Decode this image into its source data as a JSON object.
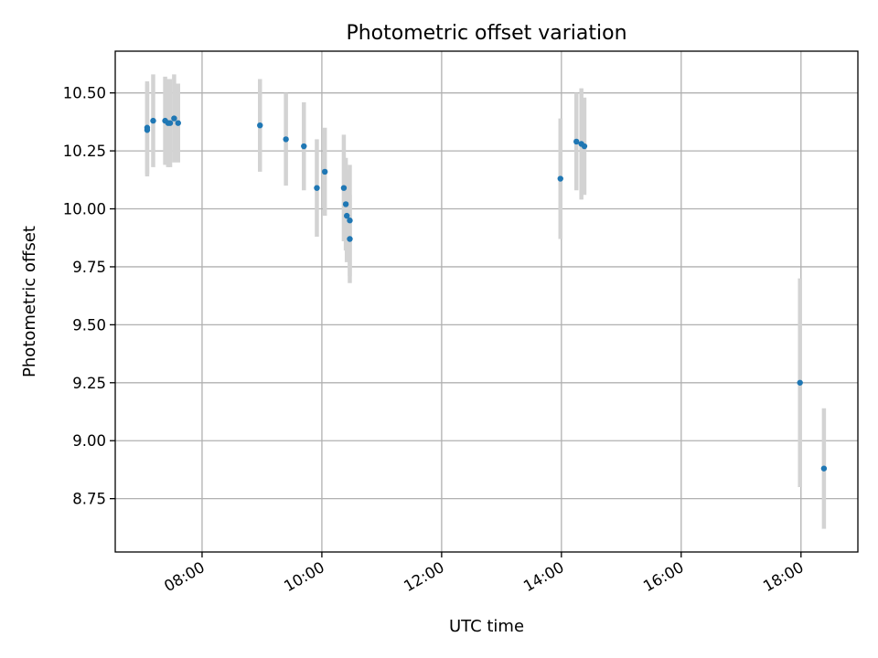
{
  "chart_data": {
    "type": "scatter",
    "title": "Photometric offset variation",
    "xlabel": "UTC time",
    "ylabel": "Photometric offset",
    "xlim": [
      "06:33",
      "18:57"
    ],
    "ylim": [
      8.52,
      10.68
    ],
    "x_ticks": [
      "08:00",
      "10:00",
      "12:00",
      "14:00",
      "16:00",
      "18:00"
    ],
    "y_ticks": [
      "8.75",
      "9.00",
      "9.25",
      "9.50",
      "9.75",
      "10.00",
      "10.25",
      "10.50"
    ],
    "grid": true,
    "series": [
      {
        "marker_color": "#1f77b4",
        "errorbar_color": "#d3d3d3",
        "points": [
          {
            "x": "07:05",
            "y": 10.35,
            "err": 0.2
          },
          {
            "x": "07:05",
            "y": 10.34,
            "err": 0.2
          },
          {
            "x": "07:11",
            "y": 10.38,
            "err": 0.2
          },
          {
            "x": "07:23",
            "y": 10.38,
            "err": 0.19
          },
          {
            "x": "07:26",
            "y": 10.37,
            "err": 0.19
          },
          {
            "x": "07:28",
            "y": 10.37,
            "err": 0.19
          },
          {
            "x": "07:32",
            "y": 10.39,
            "err": 0.19
          },
          {
            "x": "07:36",
            "y": 10.37,
            "err": 0.17
          },
          {
            "x": "08:58",
            "y": 10.36,
            "err": 0.2
          },
          {
            "x": "09:24",
            "y": 10.3,
            "err": 0.2
          },
          {
            "x": "09:42",
            "y": 10.27,
            "err": 0.19
          },
          {
            "x": "09:55",
            "y": 10.09,
            "err": 0.21
          },
          {
            "x": "10:03",
            "y": 10.16,
            "err": 0.19
          },
          {
            "x": "10:22",
            "y": 10.09,
            "err": 0.23
          },
          {
            "x": "10:24",
            "y": 10.02,
            "err": 0.2
          },
          {
            "x": "10:25",
            "y": 9.97,
            "err": 0.2
          },
          {
            "x": "10:28",
            "y": 9.95,
            "err": 0.24
          },
          {
            "x": "10:28",
            "y": 9.87,
            "err": 0.19
          },
          {
            "x": "13:59",
            "y": 10.13,
            "err": 0.26
          },
          {
            "x": "14:15",
            "y": 10.29,
            "err": 0.21
          },
          {
            "x": "14:20",
            "y": 10.28,
            "err": 0.24
          },
          {
            "x": "14:23",
            "y": 10.27,
            "err": 0.21
          },
          {
            "x": "17:59",
            "y": 9.25,
            "err": 0.45
          },
          {
            "x": "18:23",
            "y": 8.88,
            "err": 0.26
          }
        ]
      }
    ]
  }
}
